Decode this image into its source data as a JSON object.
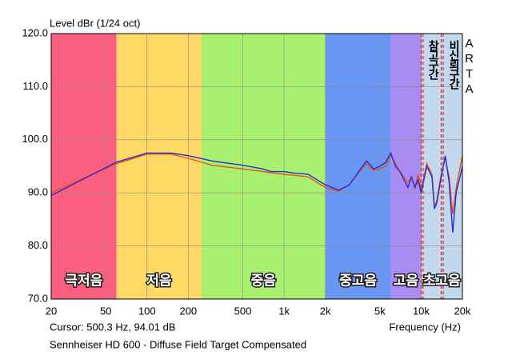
{
  "chart_data": {
    "type": "line",
    "title": "Level dBr (1/24 oct)",
    "x_label": "Frequency (Hz)",
    "cursor": "Cursor: 500.3 Hz, 94.01 dB",
    "caption": "Sennheiser HD 600 - Diffuse Field Target Compensated",
    "brand": "ARTA",
    "x_scale": "log",
    "xlim": [
      20,
      20000
    ],
    "ylim": [
      70,
      120
    ],
    "grid": true,
    "xticks": [
      20,
      50,
      100,
      200,
      500,
      {
        "value": 1000,
        "label": "1k"
      },
      {
        "value": 2000,
        "label": "2k"
      },
      {
        "value": 5000,
        "label": "5k"
      },
      {
        "value": 10000,
        "label": "10k"
      },
      {
        "value": 20000,
        "label": "20k"
      }
    ],
    "yticks": [
      {
        "value": 70,
        "label": "70.0"
      },
      {
        "value": 80,
        "label": "80.0"
      },
      {
        "value": 90,
        "label": "90.0"
      },
      {
        "value": 100,
        "label": "100.0"
      },
      {
        "value": 110,
        "label": "110.0"
      },
      {
        "value": 120,
        "label": "120.0"
      }
    ],
    "bands": [
      {
        "label": "극저음",
        "from": 20,
        "to": 60,
        "color": "#fb5f80"
      },
      {
        "label": "저음",
        "from": 60,
        "to": 250,
        "color": "#ffd966"
      },
      {
        "label": "중음",
        "from": 250,
        "to": 2000,
        "color": "#a9f06f"
      },
      {
        "label": "중고음",
        "from": 2000,
        "to": 6000,
        "color": "#6a96f4"
      },
      {
        "label": "고음",
        "from": 6000,
        "to": 10000,
        "color": "#a88cf2"
      },
      {
        "label": "초고음",
        "from": 10000,
        "to": 20000,
        "color": "#c3d8ec"
      }
    ],
    "zones": [
      {
        "label": "참고구간",
        "from": 10000,
        "to": 14000,
        "color": "#e02020"
      },
      {
        "label": "비신뢰구간",
        "from": 14000,
        "to": 20000,
        "color": "#e02020"
      }
    ],
    "x": [
      20,
      60,
      100,
      150,
      200,
      300,
      500,
      700,
      800,
      1000,
      1200,
      1500,
      2000,
      2500,
      3000,
      3500,
      4000,
      4500,
      5000,
      5500,
      6000,
      6500,
      7000,
      8000,
      8500,
      9000,
      9500,
      10000,
      11000,
      12000,
      12500,
      13000,
      14000,
      15000,
      16000,
      17000,
      18000,
      20000
    ],
    "series": [
      {
        "color": "#e5541e",
        "values": [
          90,
          95.5,
          97.3,
          97.3,
          96.5,
          95.2,
          94.5,
          94,
          93.8,
          93.5,
          93.3,
          93,
          91,
          90.3,
          91.5,
          93.8,
          95.5,
          94.2,
          94.5,
          95,
          97,
          95.5,
          94,
          92,
          93,
          91,
          93.5,
          90.5,
          95.5,
          93.5,
          87.5,
          88.5,
          93.5,
          96.5,
          93,
          86,
          91,
          97
        ]
      },
      {
        "color": "#2b2bd0",
        "values": [
          89.5,
          95.8,
          97.5,
          97.5,
          97,
          96,
          95.2,
          94.5,
          94,
          94,
          93.7,
          93.5,
          91.5,
          90.5,
          91.5,
          94,
          96,
          94.5,
          95,
          95.7,
          97.5,
          95,
          94,
          91,
          93,
          91,
          92.5,
          90,
          95,
          93,
          87,
          88,
          93,
          97,
          92,
          82.5,
          90,
          95
        ]
      }
    ]
  }
}
